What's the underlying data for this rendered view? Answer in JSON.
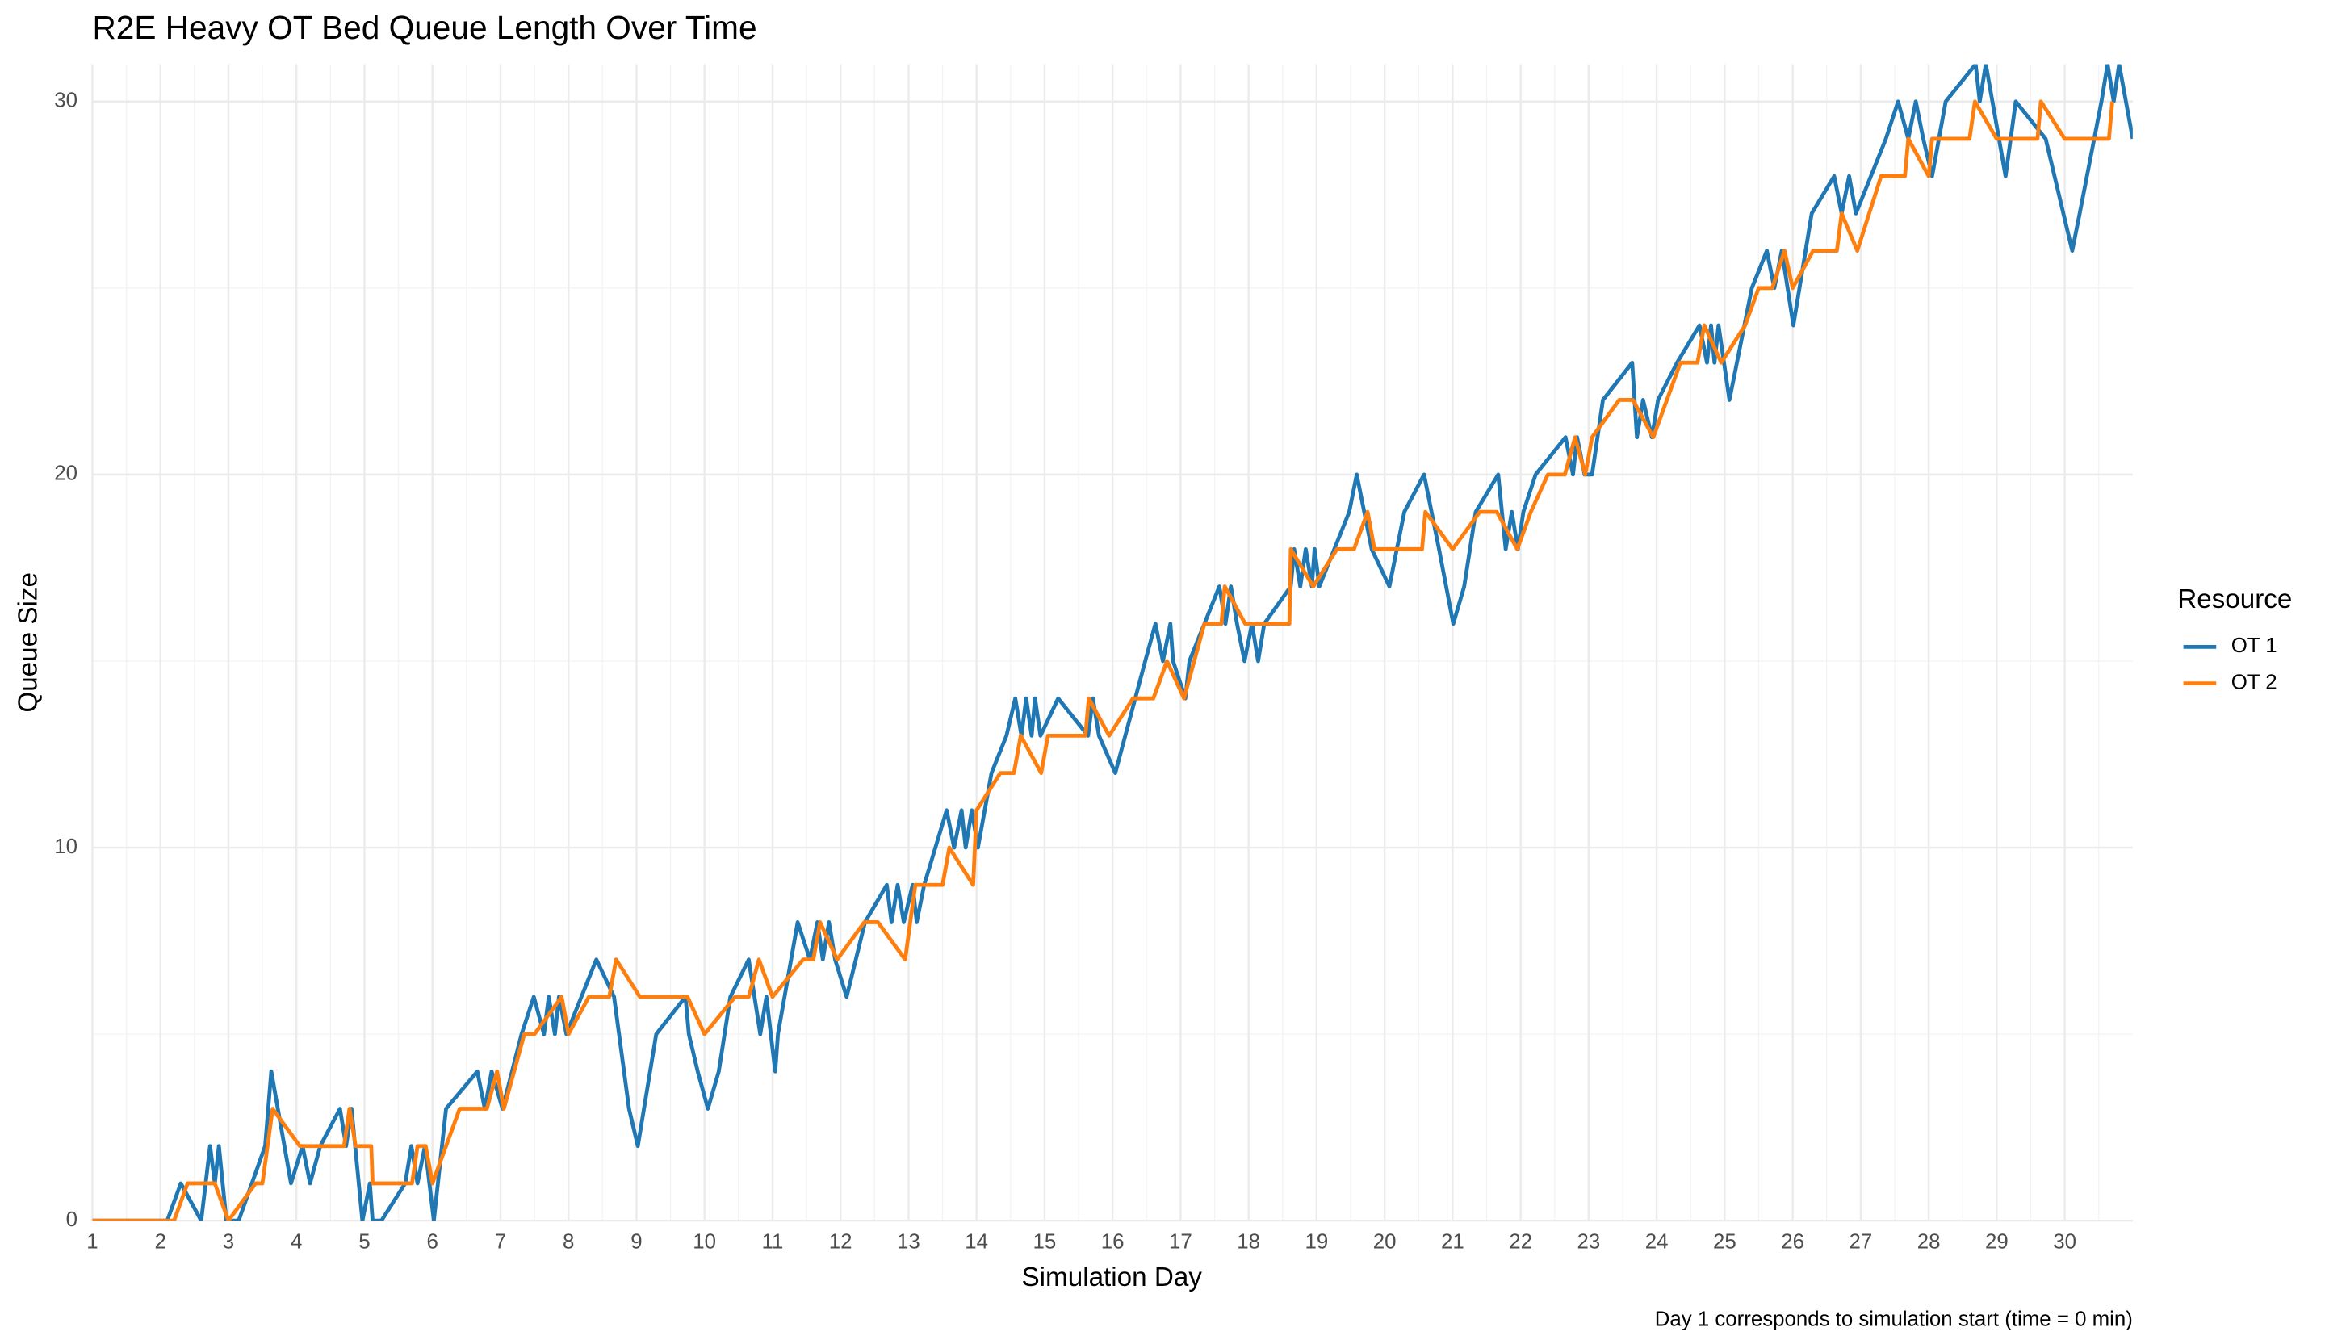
{
  "chart_data": {
    "type": "line",
    "title": "R2E Heavy OT Bed Queue Length Over Time",
    "x_label": "Simulation Day",
    "y_label": "Queue Size",
    "caption": "Day 1 corresponds to simulation start (time = 0 min)",
    "legend_title": "Resource",
    "legend_position": "right",
    "grid": true,
    "xlim": [
      1,
      31
    ],
    "ylim": [
      0,
      31
    ],
    "xticks": [
      1,
      2,
      3,
      4,
      5,
      6,
      7,
      8,
      9,
      10,
      11,
      12,
      13,
      14,
      15,
      16,
      17,
      18,
      19,
      20,
      21,
      22,
      23,
      24,
      25,
      26,
      27,
      28,
      29,
      30
    ],
    "yticks": [
      0,
      10,
      20,
      30
    ],
    "series": [
      {
        "name": "OT 1",
        "color": "#1f77b4",
        "x": [
          1.0,
          2.1,
          2.3,
          2.6,
          2.73,
          2.8,
          2.86,
          2.97,
          3.15,
          3.54,
          3.63,
          3.92,
          4.09,
          4.2,
          4.35,
          4.64,
          4.73,
          4.81,
          4.97,
          5.08,
          5.12,
          5.25,
          5.6,
          5.69,
          5.78,
          5.89,
          6.02,
          6.2,
          6.66,
          6.77,
          6.87,
          7.03,
          7.31,
          7.49,
          7.64,
          7.71,
          7.8,
          7.86,
          7.97,
          8.41,
          8.67,
          8.89,
          9.02,
          9.29,
          9.72,
          9.77,
          9.9,
          10.05,
          10.21,
          10.38,
          10.65,
          10.82,
          10.91,
          11.04,
          11.08,
          11.37,
          11.55,
          11.66,
          11.74,
          11.83,
          11.92,
          12.09,
          12.36,
          12.68,
          12.75,
          12.84,
          12.93,
          13.06,
          13.12,
          13.23,
          13.56,
          13.67,
          13.78,
          13.84,
          13.93,
          14.02,
          14.22,
          14.44,
          14.57,
          14.66,
          14.73,
          14.81,
          14.86,
          14.94,
          15.2,
          15.64,
          15.71,
          15.8,
          16.04,
          16.48,
          16.63,
          16.74,
          16.85,
          16.89,
          17.07,
          17.13,
          17.57,
          17.66,
          17.74,
          17.83,
          17.94,
          18.05,
          18.14,
          18.23,
          18.62,
          18.67,
          18.76,
          18.84,
          18.93,
          18.97,
          19.04,
          19.48,
          19.59,
          19.81,
          20.07,
          20.29,
          20.58,
          20.8,
          21.01,
          21.17,
          21.34,
          21.67,
          21.78,
          21.87,
          21.96,
          22.04,
          22.22,
          22.66,
          22.77,
          22.83,
          22.94,
          23.05,
          23.21,
          23.64,
          23.71,
          23.8,
          23.93,
          24.02,
          24.3,
          24.63,
          24.74,
          24.8,
          24.85,
          24.91,
          25.07,
          25.4,
          25.62,
          25.73,
          25.84,
          26.01,
          26.28,
          26.61,
          26.72,
          26.83,
          26.93,
          27.37,
          27.55,
          27.7,
          27.81,
          27.92,
          28.05,
          28.25,
          28.69,
          28.75,
          28.84,
          29.13,
          29.28,
          29.72,
          29.85,
          30.11,
          30.22,
          30.54,
          30.63,
          30.72,
          30.8,
          31.0
        ],
        "values": [
          0,
          0,
          1,
          0,
          2,
          1,
          2,
          0,
          0,
          2,
          4,
          1,
          2,
          1,
          2,
          3,
          2,
          3,
          0,
          1,
          0,
          0,
          1,
          2,
          1,
          2,
          0,
          3,
          4,
          3,
          4,
          3,
          5,
          6,
          5,
          6,
          5,
          6,
          5,
          7,
          6,
          3,
          2,
          5,
          6,
          5,
          4,
          3,
          4,
          6,
          7,
          5,
          6,
          4,
          5,
          8,
          7,
          8,
          7,
          8,
          7,
          6,
          8,
          9,
          8,
          9,
          8,
          9,
          8,
          9,
          11,
          10,
          11,
          10,
          11,
          10,
          12,
          13,
          14,
          13,
          14,
          13,
          14,
          13,
          14,
          13,
          14,
          13,
          12,
          15,
          16,
          15,
          16,
          15,
          14,
          15,
          17,
          16,
          17,
          16,
          15,
          16,
          15,
          16,
          17,
          18,
          17,
          18,
          17,
          18,
          17,
          19,
          20,
          18,
          17,
          19,
          20,
          18,
          16,
          17,
          19,
          20,
          18,
          19,
          18,
          19,
          20,
          21,
          20,
          21,
          20,
          20,
          22,
          23,
          21,
          22,
          21,
          22,
          23,
          24,
          23,
          24,
          23,
          24,
          22,
          25,
          26,
          25,
          26,
          24,
          27,
          28,
          27,
          28,
          27,
          29,
          30,
          29,
          30,
          29,
          28,
          30,
          31,
          30,
          31,
          28,
          30,
          29,
          28,
          26,
          27,
          30,
          31,
          30,
          31,
          29
        ]
      },
      {
        "name": "OT 2",
        "color": "#ff7f0e",
        "x": [
          1.0,
          2.2,
          2.4,
          2.8,
          3.0,
          3.4,
          3.5,
          3.65,
          4.05,
          4.7,
          4.78,
          4.87,
          5.1,
          5.12,
          5.55,
          5.7,
          5.78,
          5.9,
          6.0,
          6.2,
          6.4,
          6.8,
          6.95,
          7.05,
          7.35,
          7.5,
          7.9,
          8.0,
          8.3,
          8.6,
          8.7,
          9.05,
          9.75,
          10.0,
          10.45,
          10.65,
          10.8,
          11.0,
          11.45,
          11.6,
          11.7,
          11.95,
          12.35,
          12.55,
          12.95,
          13.1,
          13.5,
          13.6,
          13.95,
          14.0,
          14.35,
          14.55,
          14.65,
          14.95,
          15.05,
          15.6,
          15.65,
          15.95,
          16.3,
          16.6,
          16.8,
          17.05,
          17.35,
          17.6,
          17.65,
          17.95,
          18.6,
          18.62,
          18.95,
          19.3,
          19.55,
          19.75,
          19.85,
          20.55,
          20.6,
          21.0,
          21.4,
          21.65,
          21.95,
          22.15,
          22.4,
          22.65,
          22.8,
          22.95,
          23.05,
          23.45,
          23.65,
          23.95,
          24.35,
          24.6,
          24.7,
          24.95,
          25.3,
          25.5,
          25.7,
          25.88,
          26.0,
          26.3,
          26.65,
          26.72,
          26.95,
          27.3,
          27.65,
          27.7,
          28.0,
          28.05,
          28.6,
          28.68,
          29.0,
          29.6,
          29.65,
          30.0,
          30.65,
          30.7
        ],
        "values": [
          0,
          0,
          1,
          1,
          0,
          1,
          1,
          3,
          2,
          2,
          3,
          2,
          2,
          1,
          1,
          1,
          2,
          2,
          1,
          2,
          3,
          3,
          4,
          3,
          5,
          5,
          6,
          5,
          6,
          6,
          7,
          6,
          6,
          5,
          6,
          6,
          7,
          6,
          7,
          7,
          8,
          7,
          8,
          8,
          7,
          9,
          9,
          10,
          9,
          11,
          12,
          12,
          13,
          12,
          13,
          13,
          14,
          13,
          14,
          14,
          15,
          14,
          16,
          16,
          17,
          16,
          16,
          18,
          17,
          18,
          18,
          19,
          18,
          18,
          19,
          18,
          19,
          19,
          18,
          19,
          20,
          20,
          21,
          20,
          21,
          22,
          22,
          21,
          23,
          23,
          24,
          23,
          24,
          25,
          25,
          26,
          25,
          26,
          26,
          27,
          26,
          28,
          28,
          29,
          28,
          29,
          29,
          30,
          29,
          29,
          30,
          29,
          29,
          30
        ]
      }
    ]
  }
}
